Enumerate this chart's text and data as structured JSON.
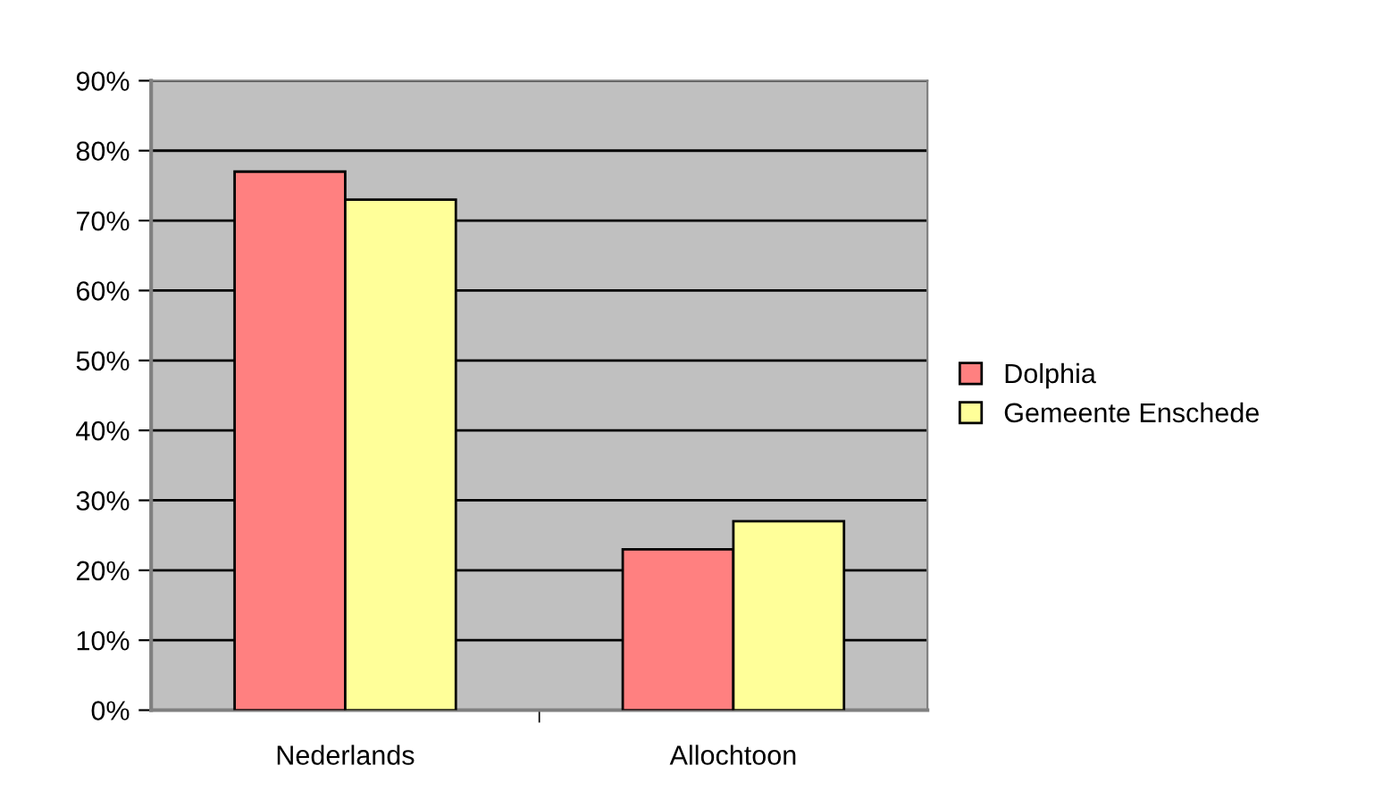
{
  "chart_data": {
    "type": "bar",
    "categories": [
      "Nederlands",
      "Allochtoon"
    ],
    "series": [
      {
        "name": "Dolphia",
        "color": "#ff8080",
        "values": [
          77,
          23
        ]
      },
      {
        "name": "Gemeente Enschede",
        "color": "#ffff99",
        "values": [
          73,
          27
        ]
      }
    ],
    "ylim": [
      0,
      90
    ],
    "yticks": [
      {
        "value": 0,
        "label": "0%"
      },
      {
        "value": 10,
        "label": "10%"
      },
      {
        "value": 20,
        "label": "20%"
      },
      {
        "value": 30,
        "label": "30%"
      },
      {
        "value": 40,
        "label": "40%"
      },
      {
        "value": 50,
        "label": "50%"
      },
      {
        "value": 60,
        "label": "60%"
      },
      {
        "value": 70,
        "label": "70%"
      },
      {
        "value": 80,
        "label": "80%"
      },
      {
        "value": 90,
        "label": "90%"
      }
    ],
    "grid": "y",
    "legend": "right"
  }
}
